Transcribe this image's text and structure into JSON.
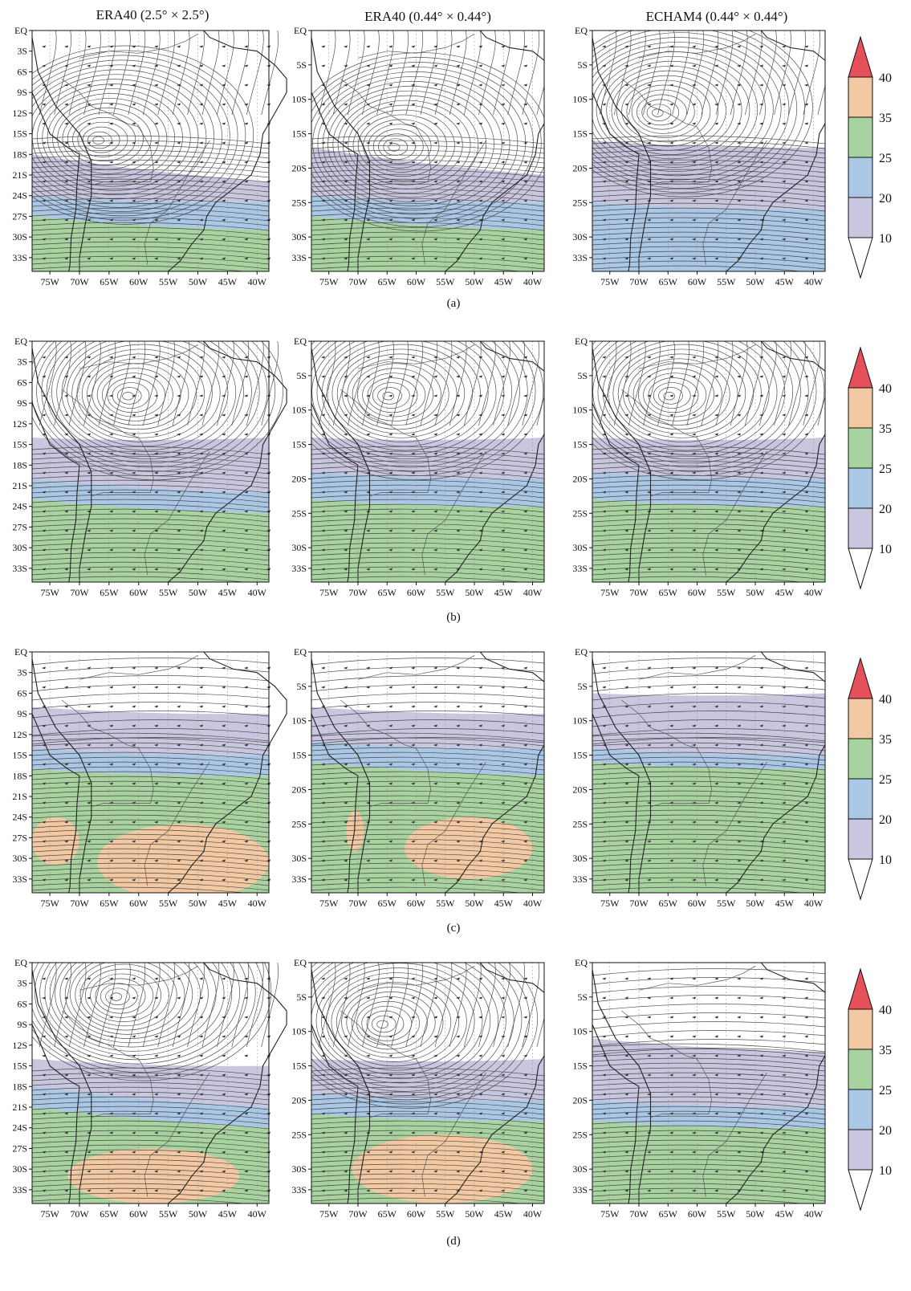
{
  "column_titles": [
    "ERA40 (2.5° × 2.5°)",
    "ERA40 (0.44° × 0.44°)",
    "ECHAM4 (0.44° × 0.44°)"
  ],
  "x_ticks": [
    "75W",
    "70W",
    "65W",
    "60W",
    "55W",
    "50W",
    "45W",
    "40W"
  ],
  "y_ticks_coarse": [
    "EQ",
    "3S",
    "6S",
    "9S",
    "12S",
    "15S",
    "18S",
    "21S",
    "24S",
    "27S",
    "30S",
    "33S"
  ],
  "y_ticks_fine": [
    "EQ",
    "5S",
    "10S",
    "15S",
    "20S",
    "25S",
    "30S",
    "33S"
  ],
  "panels": [
    "(a)",
    "(b)",
    "(c)",
    "(d)"
  ],
  "colorbar": {
    "labels": [
      "10",
      "20",
      "25",
      "35",
      "40"
    ],
    "colors": [
      "#ffffff",
      "#c9c6df",
      "#aac8e6",
      "#a8d3a0",
      "#f2c9a2",
      "#e5505a"
    ]
  },
  "colors": {
    "purple": "#c9c6df",
    "blue": "#aac8e6",
    "green": "#a8d3a0",
    "orange": "#f2c9a2",
    "red": "#e5505a",
    "streamline": "#333333",
    "coast": "#222222"
  },
  "map_data": {
    "variable": "wind speed streamlines",
    "lon_range": [
      "78W",
      "38W"
    ],
    "lat_range": [
      "EQ",
      "35S"
    ],
    "rows": [
      {
        "panel": "(a)",
        "maps": [
          {
            "source": "ERA40 (2.5° × 2.5°)",
            "vortex": {
              "lon": -67,
              "lat": -16
            },
            "bands": [
              {
                "level": "10",
                "from_lat": [
                  -18,
                  -22
                ],
                "to_lat": [
                  -24,
                  -25
                ]
              },
              {
                "level": "20",
                "from_lat": [
                  -24,
                  -25
                ],
                "to_lat": [
                  -27,
                  -29
                ]
              },
              {
                "level": "25",
                "from_lat": [
                  -27,
                  -29
                ],
                "to_lat": [
                  -36,
                  -36
                ]
              }
            ]
          },
          {
            "source": "ERA40 (0.44° × 0.44°)",
            "vortex": {
              "lon": -64,
              "lat": -17
            },
            "bands": [
              {
                "level": "10",
                "from_lat": [
                  -17,
                  -21
                ],
                "to_lat": [
                  -24,
                  -25
                ]
              },
              {
                "level": "20",
                "from_lat": [
                  -24,
                  -25
                ],
                "to_lat": [
                  -27,
                  -29
                ]
              },
              {
                "level": "25",
                "from_lat": [
                  -27,
                  -29
                ],
                "to_lat": [
                  -35,
                  -35
                ]
              }
            ]
          },
          {
            "source": "ECHAM4 (0.44° × 0.44°)",
            "vortex": {
              "lon": -67,
              "lat": -12
            },
            "bands": [
              {
                "level": "10",
                "from_lat": [
                  -16,
                  -17
                ],
                "to_lat": [
                  -25,
                  -26
                ]
              },
              {
                "level": "20",
                "from_lat": [
                  -25,
                  -26
                ],
                "to_lat": [
                  -35,
                  -35
                ]
              }
            ]
          }
        ]
      },
      {
        "panel": "(b)",
        "maps": [
          {
            "source": "ERA40 (2.5° × 2.5°)",
            "vortex": {
              "lon": -62,
              "lat": -8
            },
            "bands": [
              {
                "level": "10",
                "from_lat": [
                  -14,
                  -14
                ],
                "to_lat": [
                  -20,
                  -22
                ]
              },
              {
                "level": "20",
                "from_lat": [
                  -20,
                  -22
                ],
                "to_lat": [
                  -23,
                  -25
                ]
              },
              {
                "level": "25",
                "from_lat": [
                  -23,
                  -25
                ],
                "to_lat": [
                  -36,
                  -36
                ]
              }
            ]
          },
          {
            "source": "ERA40 (0.44° × 0.44°)",
            "vortex": {
              "lon": -65,
              "lat": -8
            },
            "bands": [
              {
                "level": "10",
                "from_lat": [
                  -14,
                  -14
                ],
                "to_lat": [
                  -19,
                  -20
                ]
              },
              {
                "level": "20",
                "from_lat": [
                  -19,
                  -20
                ],
                "to_lat": [
                  -23,
                  -24
                ]
              },
              {
                "level": "25",
                "from_lat": [
                  -23,
                  -24
                ],
                "to_lat": [
                  -35,
                  -35
                ]
              }
            ]
          },
          {
            "source": "ECHAM4 (0.44° × 0.44°)",
            "vortex": {
              "lon": -65,
              "lat": -8
            },
            "bands": [
              {
                "level": "10",
                "from_lat": [
                  -14,
                  -14
                ],
                "to_lat": [
                  -19,
                  -20
                ]
              },
              {
                "level": "20",
                "from_lat": [
                  -19,
                  -20
                ],
                "to_lat": [
                  -23,
                  -24
                ]
              },
              {
                "level": "25",
                "from_lat": [
                  -23,
                  -24
                ],
                "to_lat": [
                  -35,
                  -35
                ]
              }
            ]
          }
        ]
      },
      {
        "panel": "(c)",
        "maps": [
          {
            "source": "ERA40 (2.5° × 2.5°)",
            "vortex": null,
            "bands": [
              {
                "level": "10",
                "from_lat": [
                  -8,
                  -9
                ],
                "to_lat": [
                  -14,
                  -15
                ]
              },
              {
                "level": "20",
                "from_lat": [
                  -14,
                  -15
                ],
                "to_lat": [
                  -17,
                  -18
                ]
              },
              {
                "level": "25",
                "from_lat": [
                  -17,
                  -18
                ],
                "to_lat": [
                  -36,
                  -36
                ]
              }
            ],
            "highs": [
              {
                "level": "35",
                "lon": [
                  -78,
                  -70
                ],
                "lat": [
                  -24,
                  -31
                ]
              },
              {
                "level": "35",
                "lon": [
                  -67,
                  -38
                ],
                "lat": [
                  -25,
                  -36
                ]
              }
            ]
          },
          {
            "source": "ERA40 (0.44° × 0.44°)",
            "vortex": null,
            "bands": [
              {
                "level": "10",
                "from_lat": [
                  -8,
                  -9
                ],
                "to_lat": [
                  -13,
                  -14
                ]
              },
              {
                "level": "20",
                "from_lat": [
                  -13,
                  -14
                ],
                "to_lat": [
                  -16,
                  -18
                ]
              },
              {
                "level": "25",
                "from_lat": [
                  -16,
                  -18
                ],
                "to_lat": [
                  -35,
                  -35
                ]
              }
            ],
            "highs": [
              {
                "level": "35",
                "lon": [
                  -72,
                  -69
                ],
                "lat": [
                  -23,
                  -29
                ]
              },
              {
                "level": "35",
                "lon": [
                  -62,
                  -40
                ],
                "lat": [
                  -24,
                  -33
                ]
              }
            ]
          },
          {
            "source": "ECHAM4 (0.44° × 0.44°)",
            "vortex": null,
            "bands": [
              {
                "level": "10",
                "from_lat": [
                  -6,
                  -6
                ],
                "to_lat": [
                  -14,
                  -15
                ]
              },
              {
                "level": "20",
                "from_lat": [
                  -14,
                  -15
                ],
                "to_lat": [
                  -16,
                  -17
                ]
              },
              {
                "level": "25",
                "from_lat": [
                  -16,
                  -17
                ],
                "to_lat": [
                  -35,
                  -35
                ]
              }
            ]
          }
        ]
      },
      {
        "panel": "(d)",
        "maps": [
          {
            "source": "ERA40 (2.5° × 2.5°)",
            "vortex": {
              "lon": -64,
              "lat": -5
            },
            "bands": [
              {
                "level": "10",
                "from_lat": [
                  -14,
                  -15
                ],
                "to_lat": [
                  -18,
                  -21
                ]
              },
              {
                "level": "20",
                "from_lat": [
                  -18,
                  -21
                ],
                "to_lat": [
                  -21,
                  -24
                ]
              },
              {
                "level": "25",
                "from_lat": [
                  -21,
                  -24
                ],
                "to_lat": [
                  -36,
                  -36
                ]
              }
            ],
            "highs": [
              {
                "level": "35",
                "lon": [
                  -72,
                  -43
                ],
                "lat": [
                  -27,
                  -35
                ]
              }
            ]
          },
          {
            "source": "ERA40 (0.44° × 0.44°)",
            "vortex": {
              "lon": -66,
              "lat": -9
            },
            "bands": [
              {
                "level": "10",
                "from_lat": [
                  -14,
                  -14
                ],
                "to_lat": [
                  -19,
                  -20
                ]
              },
              {
                "level": "20",
                "from_lat": [
                  -19,
                  -20
                ],
                "to_lat": [
                  -22,
                  -23
                ]
              },
              {
                "level": "25",
                "from_lat": [
                  -22,
                  -23
                ],
                "to_lat": [
                  -35,
                  -35
                ]
              }
            ],
            "highs": [
              {
                "level": "35",
                "lon": [
                  -71,
                  -40
                ],
                "lat": [
                  -25,
                  -35
                ]
              }
            ]
          },
          {
            "source": "ECHAM4 (0.44° × 0.44°)",
            "vortex": null,
            "bands": [
              {
                "level": "10",
                "from_lat": [
                  -11,
                  -13
                ],
                "to_lat": [
                  -20,
                  -21
                ]
              },
              {
                "level": "20",
                "from_lat": [
                  -20,
                  -21
                ],
                "to_lat": [
                  -23,
                  -24
                ]
              },
              {
                "level": "25",
                "from_lat": [
                  -23,
                  -24
                ],
                "to_lat": [
                  -35,
                  -35
                ]
              }
            ]
          }
        ]
      }
    ]
  }
}
